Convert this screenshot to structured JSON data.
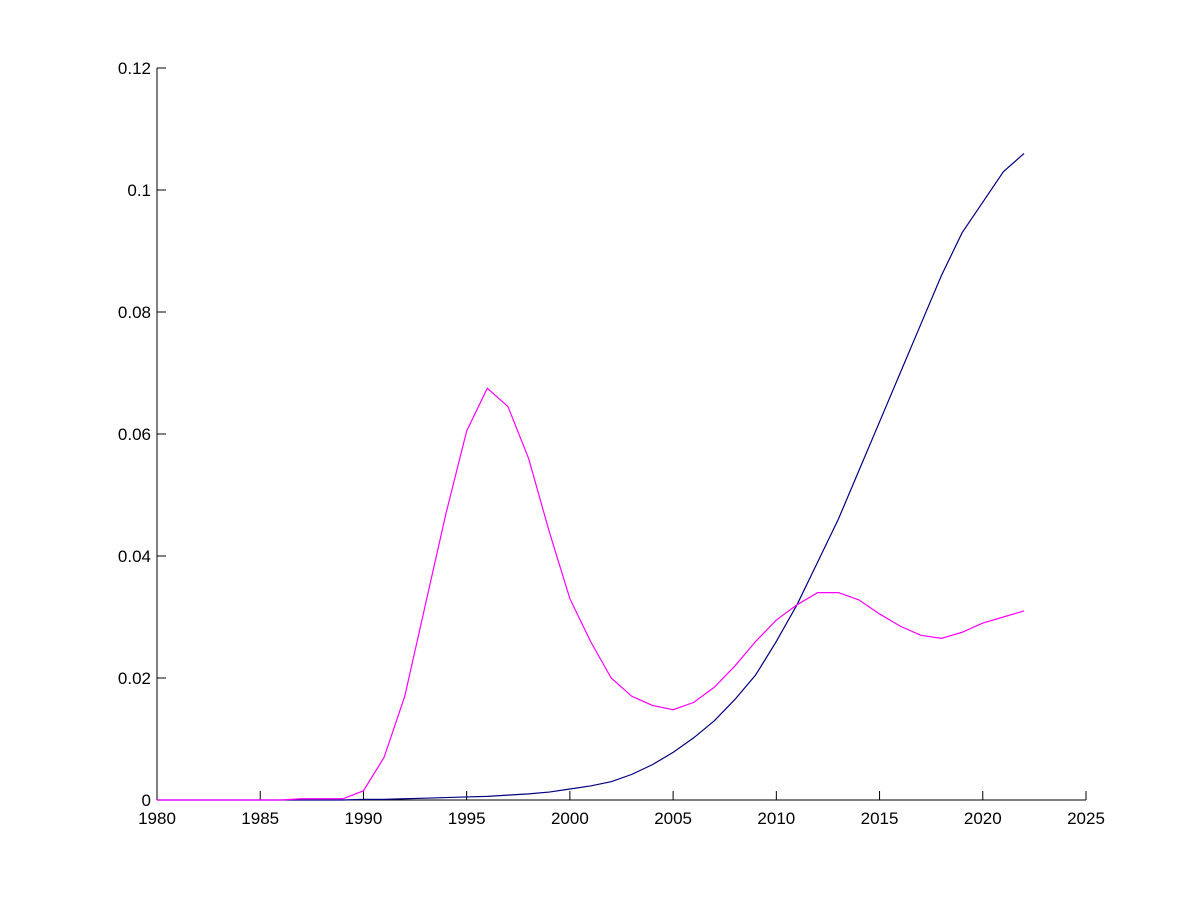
{
  "chart_data": {
    "type": "line",
    "x": [
      1980,
      1981,
      1982,
      1983,
      1984,
      1985,
      1986,
      1987,
      1988,
      1989,
      1990,
      1991,
      1992,
      1993,
      1994,
      1995,
      1996,
      1997,
      1998,
      1999,
      2000,
      2001,
      2002,
      2003,
      2004,
      2005,
      2006,
      2007,
      2008,
      2009,
      2010,
      2011,
      2012,
      2013,
      2014,
      2015,
      2016,
      2017,
      2018,
      2019,
      2020,
      2021,
      2022
    ],
    "series": [
      {
        "color": "#00007f",
        "values": [
          0,
          0,
          0,
          0,
          0,
          0,
          0,
          0,
          0,
          0,
          0.0001,
          0.0001,
          0.0002,
          0.0003,
          0.0004,
          0.0005,
          0.0006,
          0.0008,
          0.001,
          0.0013,
          0.0018,
          0.0023,
          0.003,
          0.0042,
          0.0058,
          0.0078,
          0.0102,
          0.013,
          0.0165,
          0.0205,
          0.026,
          0.032,
          0.039,
          0.046,
          0.054,
          0.062,
          0.07,
          0.078,
          0.086,
          0.093,
          0.098,
          0.103,
          0.106
        ]
      },
      {
        "color": "#ff00ff",
        "values": [
          0,
          0,
          0,
          0,
          0,
          0,
          0,
          0.0002,
          0.0002,
          0.0002,
          0.0015,
          0.007,
          0.017,
          0.032,
          0.047,
          0.0605,
          0.0675,
          0.0645,
          0.056,
          0.044,
          0.033,
          0.026,
          0.02,
          0.017,
          0.0155,
          0.0148,
          0.016,
          0.0185,
          0.022,
          0.026,
          0.0295,
          0.032,
          0.034,
          0.034,
          0.0328,
          0.0305,
          0.0285,
          0.027,
          0.0265,
          0.0275,
          0.029,
          0.03,
          0.031
        ]
      }
    ],
    "xlim": [
      1980,
      2025
    ],
    "xticks": [
      1980,
      1985,
      1990,
      1995,
      2000,
      2005,
      2010,
      2015,
      2020,
      2025
    ],
    "ylim": [
      0,
      0.12
    ],
    "yticks": [
      0,
      0.02,
      0.04,
      0.06,
      0.08,
      0.1,
      0.12
    ]
  }
}
